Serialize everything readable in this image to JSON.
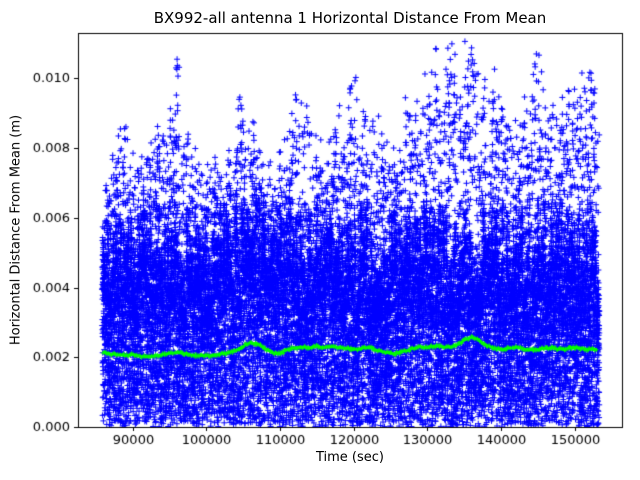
{
  "chart_data": {
    "type": "scatter",
    "title": "BX992-all antenna 1 Horizontal Distance From Mean",
    "xlabel": "Time (sec)",
    "ylabel": "Horizontal Distance From Mean (m)",
    "background": "#ffffff",
    "xlim": [
      82600,
      156400
    ],
    "ylim": [
      0,
      0.0113
    ],
    "grid": false,
    "legend": "none",
    "xticks": {
      "values": [
        90000,
        100000,
        110000,
        120000,
        130000,
        140000,
        150000
      ],
      "labels": [
        "90000",
        "100000",
        "110000",
        "120000",
        "130000",
        "140000",
        "150000"
      ]
    },
    "yticks": {
      "values": [
        0,
        0.002,
        0.004,
        0.006,
        0.008,
        0.01
      ],
      "labels": [
        "0.000",
        "0.002",
        "0.004",
        "0.006",
        "0.008",
        "0.010"
      ]
    },
    "series": [
      {
        "name": "horizontal-distance-scatter",
        "type": "scatter",
        "marker": "+",
        "color": "#0000ff",
        "x_start": 86000,
        "x_end": 153200,
        "envelope_x": [
          86000,
          87000,
          88000,
          89000,
          90000,
          91000,
          92000,
          93000,
          94000,
          95000,
          96000,
          97000,
          98000,
          99000,
          100000,
          101000,
          102000,
          103000,
          104000,
          105000,
          106000,
          107000,
          108000,
          109000,
          110000,
          111000,
          112000,
          113000,
          114000,
          115000,
          116000,
          117000,
          118000,
          119000,
          120000,
          121000,
          122000,
          123000,
          124000,
          125000,
          126000,
          127000,
          128000,
          129000,
          130000,
          131000,
          132000,
          133000,
          134000,
          135000,
          136000,
          137000,
          138000,
          139000,
          140000,
          141000,
          142000,
          143000,
          144000,
          145000,
          146000,
          147000,
          148000,
          149000,
          150000,
          151000,
          152000,
          153000
        ],
        "envelope_y": [
          0.0062,
          0.0072,
          0.0078,
          0.0083,
          0.0072,
          0.0066,
          0.0084,
          0.0076,
          0.008,
          0.0078,
          0.0097,
          0.0088,
          0.0076,
          0.0072,
          0.0068,
          0.0075,
          0.007,
          0.0072,
          0.0083,
          0.0086,
          0.0083,
          0.0075,
          0.0076,
          0.007,
          0.0073,
          0.0078,
          0.0086,
          0.0093,
          0.0084,
          0.0076,
          0.0073,
          0.0078,
          0.0086,
          0.008,
          0.0098,
          0.0085,
          0.0089,
          0.008,
          0.009,
          0.0083,
          0.0078,
          0.0087,
          0.0083,
          0.009,
          0.0104,
          0.01,
          0.0092,
          0.0113,
          0.0096,
          0.01,
          0.0113,
          0.0097,
          0.009,
          0.0095,
          0.0086,
          0.0083,
          0.0079,
          0.0084,
          0.0088,
          0.0098,
          0.0087,
          0.0083,
          0.0078,
          0.0096,
          0.0088,
          0.0097,
          0.0094,
          0.0088
        ]
      },
      {
        "name": "running-mean",
        "type": "line",
        "marker": "+",
        "color": "#00ff00",
        "x": [
          86000,
          87000,
          88000,
          89000,
          90000,
          91000,
          92000,
          93000,
          94000,
          95000,
          96000,
          97000,
          98000,
          99000,
          100000,
          101000,
          102000,
          103000,
          104000,
          105000,
          106000,
          107000,
          108000,
          109000,
          110000,
          111000,
          112000,
          113000,
          114000,
          115000,
          116000,
          117000,
          118000,
          119000,
          120000,
          121000,
          122000,
          123000,
          124000,
          125000,
          126000,
          127000,
          128000,
          129000,
          130000,
          131000,
          132000,
          133000,
          134000,
          135000,
          136000,
          137000,
          138000,
          139000,
          140000,
          141000,
          142000,
          143000,
          144000,
          145000,
          146000,
          147000,
          148000,
          149000,
          150000,
          151000,
          152000,
          153000
        ],
        "y": [
          0.00215,
          0.0021,
          0.00207,
          0.00205,
          0.00207,
          0.00204,
          0.002,
          0.00203,
          0.00208,
          0.0021,
          0.00213,
          0.0021,
          0.00207,
          0.00204,
          0.00203,
          0.00207,
          0.0021,
          0.00213,
          0.0022,
          0.00232,
          0.00243,
          0.00238,
          0.00225,
          0.00213,
          0.0021,
          0.00222,
          0.00228,
          0.0023,
          0.00228,
          0.00232,
          0.00228,
          0.0023,
          0.00228,
          0.00225,
          0.00222,
          0.00225,
          0.00228,
          0.00222,
          0.00215,
          0.0021,
          0.00212,
          0.00218,
          0.00225,
          0.0023,
          0.00228,
          0.00232,
          0.0023,
          0.00228,
          0.00235,
          0.00248,
          0.00258,
          0.0025,
          0.00235,
          0.00225,
          0.00222,
          0.00225,
          0.00228,
          0.00225,
          0.0022,
          0.00222,
          0.00225,
          0.00228,
          0.00222,
          0.00225,
          0.00228,
          0.00225,
          0.00222,
          0.00224
        ]
      }
    ]
  }
}
